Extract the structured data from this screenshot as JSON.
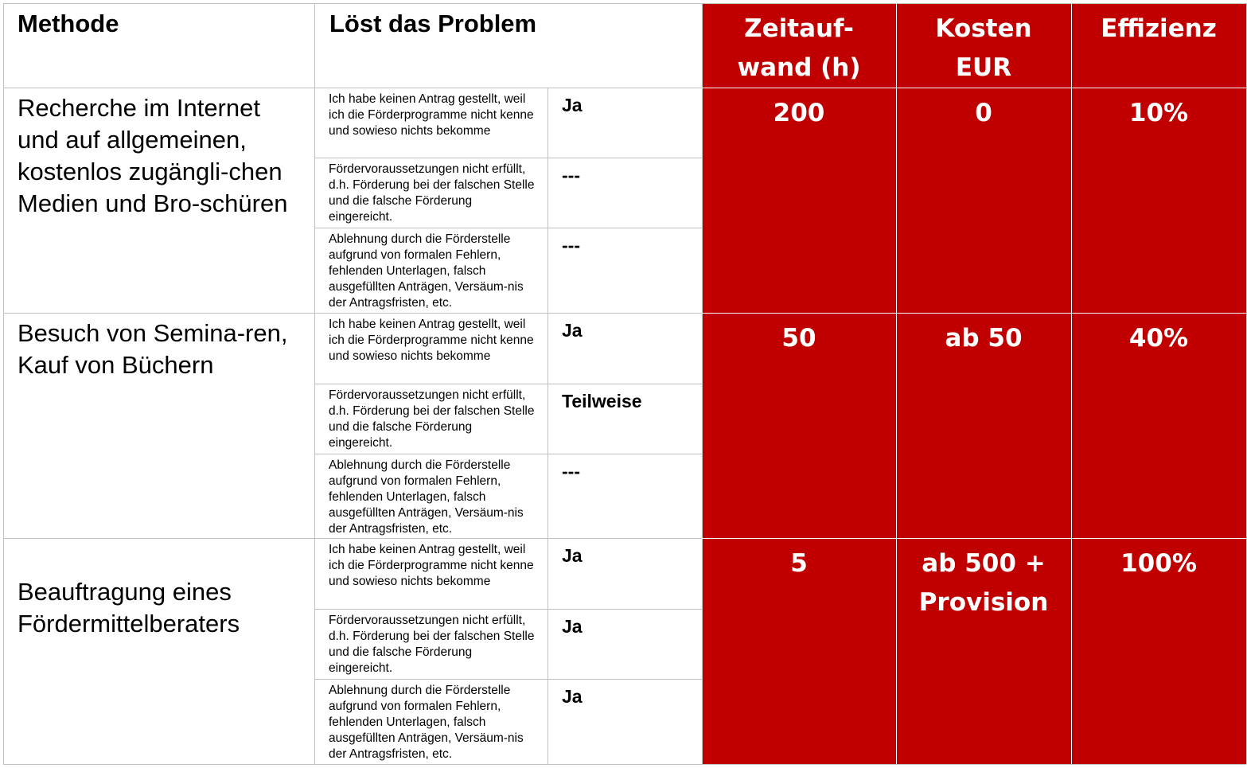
{
  "header": {
    "method": "Methode",
    "solves": "Löst das Problem",
    "time": "Zeitauf-\nwand (h)",
    "cost": "Kosten\nEUR",
    "efficiency": "Effizienz"
  },
  "problems": [
    "Ich habe keinen Antrag gestellt, weil ich die Förderprogramme nicht kenne und sowieso nichts bekomme",
    "Fördervoraussetzungen nicht erfüllt, d.h. Förderung bei der falschen Stelle und die falsche Förderung eingereicht.",
    "Ablehnung durch die Förderstelle aufgrund von formalen Fehlern, fehlenden Unterlagen, falsch ausgefüllten Anträgen, Versäum-nis der Antragsfristen, etc."
  ],
  "rows": [
    {
      "method": "Recherche im Internet und auf allgemeinen, kostenlos zugängli-chen Medien und Bro-schüren",
      "answers": [
        "Ja",
        "---",
        "---"
      ],
      "time": "200",
      "cost": "0",
      "efficiency": "10%"
    },
    {
      "method": "Besuch von Semina-ren, Kauf von Büchern",
      "answers": [
        "Ja",
        "Teilweise",
        "---"
      ],
      "time": "50",
      "cost": "ab 50",
      "efficiency": "40%"
    },
    {
      "method": "Beauftragung eines Fördermittelberaters",
      "answers": [
        "Ja",
        "Ja",
        "Ja"
      ],
      "time": "5",
      "cost": "ab 500 +\nProvision",
      "efficiency": "100%"
    }
  ],
  "colors": {
    "accent_red": "#c00000",
    "grid": "#bfbfbf"
  }
}
